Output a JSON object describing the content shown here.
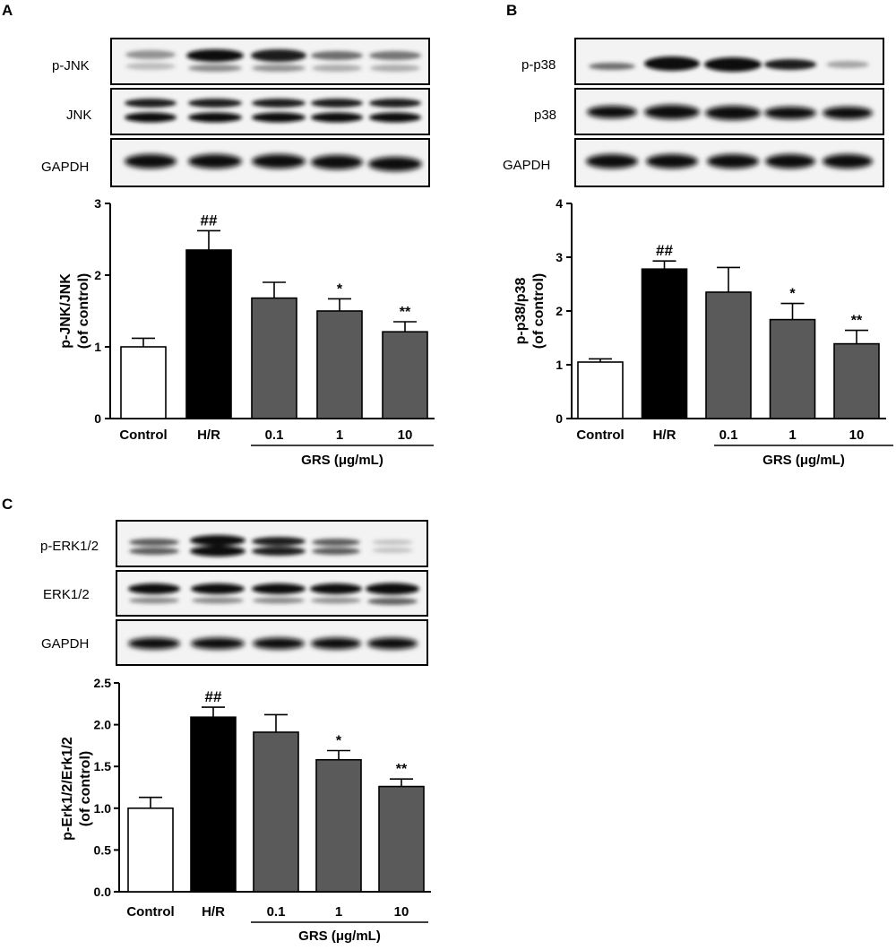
{
  "panels": [
    {
      "letter": "A",
      "blot_labels": [
        "p-JNK",
        "JNK",
        "GAPDH"
      ],
      "chart_data": {
        "type": "bar",
        "categories": [
          "Control",
          "H/R",
          "0.1",
          "1",
          "10"
        ],
        "values": [
          1.0,
          2.35,
          1.68,
          1.5,
          1.21
        ],
        "errors": [
          0.12,
          0.27,
          0.22,
          0.17,
          0.14
        ],
        "significance": [
          "",
          "##",
          "",
          "*",
          "**"
        ],
        "bar_colors": [
          "#ffffff",
          "#000000",
          "#5a5a5a",
          "#5a5a5a",
          "#5a5a5a"
        ],
        "ylabel_line1": "p-JNK/JNK",
        "ylabel_line2": "(of control)",
        "ylim": [
          0,
          3
        ],
        "yticks": [
          "0",
          "1",
          "2",
          "3"
        ],
        "group_label": "GRS (μg/mL)",
        "legend": "none",
        "grid": false
      }
    },
    {
      "letter": "B",
      "blot_labels": [
        "p-p38",
        "p38",
        "GAPDH"
      ],
      "chart_data": {
        "type": "bar",
        "categories": [
          "Control",
          "H/R",
          "0.1",
          "1",
          "10"
        ],
        "values": [
          1.05,
          2.78,
          2.35,
          1.84,
          1.39
        ],
        "errors": [
          0.06,
          0.15,
          0.46,
          0.3,
          0.25
        ],
        "significance": [
          "",
          "##",
          "",
          "*",
          "**"
        ],
        "bar_colors": [
          "#ffffff",
          "#000000",
          "#5a5a5a",
          "#5a5a5a",
          "#5a5a5a"
        ],
        "ylabel_line1": "p-p38/p38",
        "ylabel_line2": "(of control)",
        "ylim": [
          0,
          4
        ],
        "yticks": [
          "0",
          "1",
          "2",
          "3",
          "4"
        ],
        "group_label": "GRS (μg/mL)",
        "legend": "none",
        "grid": false
      }
    },
    {
      "letter": "C",
      "blot_labels": [
        "p-ERK1/2",
        "ERK1/2",
        "GAPDH"
      ],
      "chart_data": {
        "type": "bar",
        "categories": [
          "Control",
          "H/R",
          "0.1",
          "1",
          "10"
        ],
        "values": [
          1.0,
          2.09,
          1.91,
          1.58,
          1.26
        ],
        "errors": [
          0.13,
          0.12,
          0.21,
          0.11,
          0.09
        ],
        "significance": [
          "",
          "##",
          "",
          "*",
          "**"
        ],
        "bar_colors": [
          "#ffffff",
          "#000000",
          "#5a5a5a",
          "#5a5a5a",
          "#5a5a5a"
        ],
        "ylabel_line1": "p-Erk1/2/Erk1/2",
        "ylabel_line2": "(of control)",
        "ylim": [
          0,
          2.5
        ],
        "yticks": [
          "0.0",
          "0.5",
          "1.0",
          "1.5",
          "2.0",
          "2.5"
        ],
        "group_label": "GRS (μg/mL)",
        "legend": "none",
        "grid": false
      }
    }
  ]
}
